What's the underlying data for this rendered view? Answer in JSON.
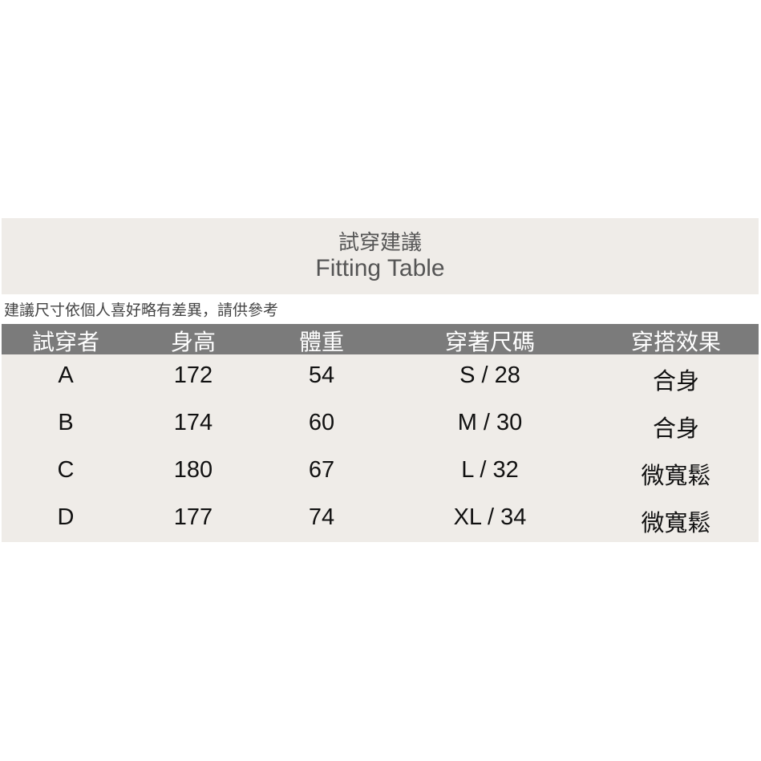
{
  "title_zh": "試穿建議",
  "title_en": "Fitting Table",
  "note": "建議尺寸依個人喜好略有差異，請供參考",
  "headers": [
    "試穿者",
    "身高",
    "體重",
    "穿著尺碼",
    "穿搭效果"
  ],
  "rows": [
    [
      "A",
      "172",
      "54",
      "S / 28",
      "合身"
    ],
    [
      "B",
      "174",
      "60",
      "M / 30",
      "合身"
    ],
    [
      "C",
      "180",
      "67",
      "L / 32",
      "微寬鬆"
    ],
    [
      "D",
      "177",
      "74",
      "XL / 34",
      "微寬鬆"
    ]
  ]
}
